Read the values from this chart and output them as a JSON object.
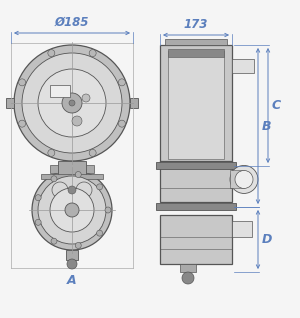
{
  "background": "#f5f5f5",
  "dim_color": "#5b7fbd",
  "line_color": "#555555",
  "dim_185": "Ø185",
  "dim_173": "173",
  "dim_A": "A",
  "dim_B": "B",
  "dim_C": "C",
  "dim_D": "D",
  "lw_main": 0.6,
  "lw_thick": 0.9,
  "fc_light": "#e0e0e0",
  "fc_mid": "#c8c8c8",
  "fc_dark": "#aaaaaa",
  "fc_vdark": "#888888",
  "ec": "#555555"
}
